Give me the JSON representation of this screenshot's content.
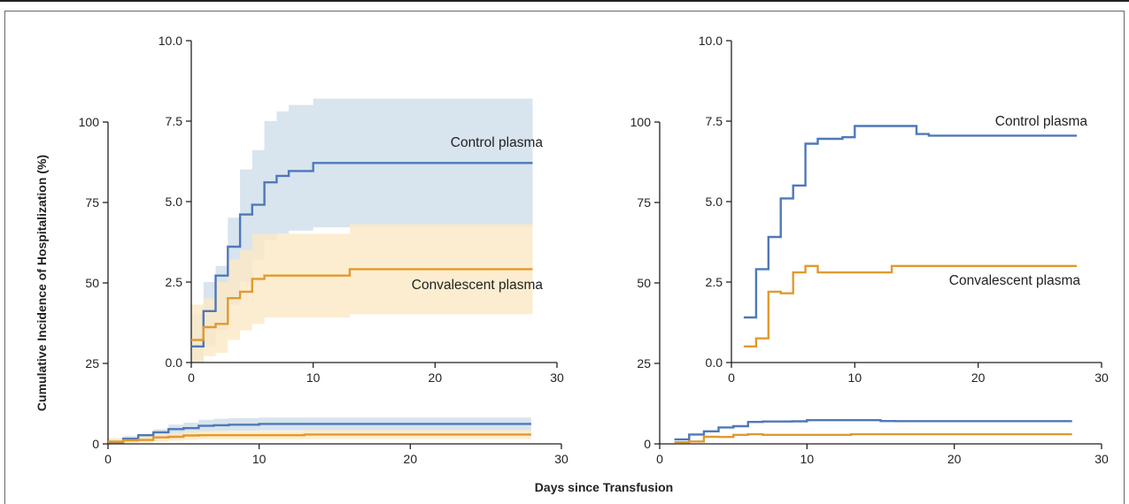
{
  "figure": {
    "y_axis_title": "Cumulative Incidence of Hospitalization (%)",
    "x_axis_title": "Days since Transfusion"
  },
  "colors": {
    "control": "#4f78b8",
    "convalescent": "#e09a2e",
    "control_band": "#d8e4ee",
    "convalescent_band": "#fce8c4",
    "overlap_band": "#e0dccb"
  },
  "chart_data": [
    {
      "id": "left-main",
      "type": "line",
      "step": true,
      "xlim": [
        0,
        30
      ],
      "ylim": [
        0,
        100
      ],
      "xticks": [
        0,
        10,
        20,
        30
      ],
      "yticks": [
        0,
        25,
        50,
        75,
        100
      ],
      "xlabel": "Days since Transfusion",
      "ylabel": "Cumulative Incidence of Hospitalization (%)",
      "series": [
        {
          "key": "control",
          "x": [
            0,
            1,
            2,
            3,
            4,
            5,
            6,
            7,
            8,
            10,
            28
          ],
          "y": [
            0.5,
            1.6,
            2.7,
            3.6,
            4.6,
            4.9,
            5.6,
            5.8,
            5.95,
            6.2,
            6.2
          ],
          "ci_upper": [
            1.5,
            2.5,
            3.0,
            4.5,
            6.0,
            6.6,
            7.5,
            7.8,
            8.0,
            8.2,
            8.2
          ],
          "ci_lower": [
            0.0,
            0.5,
            1.0,
            1.8,
            2.5,
            3.2,
            3.8,
            4.0,
            4.1,
            4.2,
            4.2
          ]
        },
        {
          "key": "convalescent",
          "x": [
            0,
            1,
            2,
            3,
            4,
            5,
            6,
            13,
            28
          ],
          "y": [
            0.7,
            1.1,
            1.2,
            2.0,
            2.2,
            2.6,
            2.7,
            2.9,
            2.9
          ],
          "ci_upper": [
            1.8,
            2.0,
            2.5,
            3.2,
            3.5,
            4.0,
            4.0,
            4.3,
            4.3
          ],
          "ci_lower": [
            0.0,
            0.2,
            0.3,
            0.7,
            1.0,
            1.2,
            1.4,
            1.5,
            1.5
          ]
        }
      ]
    },
    {
      "id": "left-inset",
      "type": "line",
      "step": true,
      "xlim": [
        0,
        30
      ],
      "ylim": [
        0,
        10
      ],
      "xticks": [
        0,
        10,
        20,
        30
      ],
      "yticks": [
        "0.0",
        "2.5",
        "5.0",
        "7.5",
        "10.0"
      ],
      "series": [
        {
          "key": "control",
          "label": "Control plasma",
          "x": [
            0,
            1,
            2,
            3,
            4,
            5,
            6,
            7,
            8,
            10,
            28
          ],
          "y": [
            0.5,
            1.6,
            2.7,
            3.6,
            4.6,
            4.9,
            5.6,
            5.8,
            5.95,
            6.2,
            6.2
          ],
          "ci_upper": [
            1.5,
            2.5,
            3.0,
            4.5,
            6.0,
            6.6,
            7.5,
            7.8,
            8.0,
            8.2,
            8.2
          ],
          "ci_lower": [
            0.0,
            0.5,
            1.0,
            1.8,
            2.5,
            3.2,
            3.8,
            4.0,
            4.1,
            4.2,
            4.2
          ]
        },
        {
          "key": "convalescent",
          "label": "Convalescent plasma",
          "x": [
            0,
            1,
            2,
            3,
            4,
            5,
            6,
            13,
            28
          ],
          "y": [
            0.7,
            1.1,
            1.2,
            2.0,
            2.2,
            2.6,
            2.7,
            2.9,
            2.9
          ],
          "ci_upper": [
            1.8,
            2.0,
            2.5,
            3.2,
            3.5,
            4.0,
            4.0,
            4.3,
            4.3
          ],
          "ci_lower": [
            0.0,
            0.2,
            0.3,
            0.7,
            1.0,
            1.2,
            1.4,
            1.5,
            1.5
          ]
        }
      ]
    },
    {
      "id": "right-main",
      "type": "line",
      "step": true,
      "xlim": [
        0,
        30
      ],
      "ylim": [
        0,
        100
      ],
      "xticks": [
        0,
        10,
        20,
        30
      ],
      "yticks": [
        0,
        25,
        50,
        75,
        100
      ],
      "series": [
        {
          "key": "control",
          "x": [
            1,
            2,
            3,
            4,
            5,
            6,
            7,
            9,
            10,
            15,
            16,
            28
          ],
          "y": [
            1.4,
            2.9,
            3.9,
            5.1,
            5.5,
            6.8,
            6.95,
            7.0,
            7.35,
            7.1,
            7.05,
            7.05
          ]
        },
        {
          "key": "convalescent",
          "x": [
            1,
            2,
            3,
            4,
            5,
            6,
            7,
            13,
            28
          ],
          "y": [
            0.5,
            0.75,
            2.2,
            2.15,
            2.8,
            3.0,
            2.8,
            3.0,
            3.0
          ]
        }
      ]
    },
    {
      "id": "right-inset",
      "type": "line",
      "step": true,
      "xlim": [
        0,
        30
      ],
      "ylim": [
        0,
        10
      ],
      "xticks": [
        0,
        10,
        20,
        30
      ],
      "yticks": [
        "0.0",
        "2.5",
        "5.0",
        "7.5",
        "10.0"
      ],
      "series": [
        {
          "key": "control",
          "label": "Control plasma",
          "x": [
            1,
            2,
            3,
            4,
            5,
            6,
            7,
            9,
            10,
            15,
            16,
            28
          ],
          "y": [
            1.4,
            2.9,
            3.9,
            5.1,
            5.5,
            6.8,
            6.95,
            7.0,
            7.35,
            7.1,
            7.05,
            7.05
          ]
        },
        {
          "key": "convalescent",
          "label": "Convalescent plasma",
          "x": [
            1,
            2,
            3,
            4,
            5,
            6,
            7,
            13,
            28
          ],
          "y": [
            0.5,
            0.75,
            2.2,
            2.15,
            2.8,
            3.0,
            2.8,
            3.0,
            3.0
          ]
        }
      ]
    }
  ]
}
